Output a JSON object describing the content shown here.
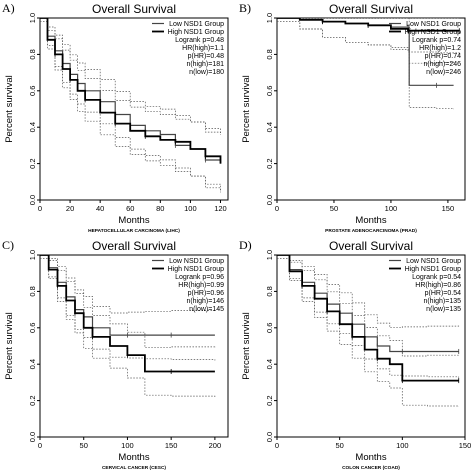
{
  "chart_data": [
    {
      "panel_letter": "A)",
      "type": "line",
      "title": "Overall Survival",
      "xlabel": "Months",
      "ylabel": "Percent survival",
      "caption": "HEPATOCELLULAR CARCINOMA (LIHC)",
      "xlim": [
        0,
        125
      ],
      "ylim": [
        0,
        1.0
      ],
      "xticks": [
        0,
        20,
        40,
        60,
        80,
        100,
        120
      ],
      "yticks": [
        "0.0",
        "0.2",
        "0.4",
        "0.6",
        "0.8",
        "1.0"
      ],
      "legend": [
        "Low NSD1 Group",
        "High NSD1 Group"
      ],
      "stats": [
        "Logrank p=0.48",
        "HR(high)=1.1",
        "p(HR)=0.48",
        "n(high)=181",
        "n(low)=180"
      ],
      "series": [
        {
          "name": "Low NSD1 Group",
          "x": [
            0,
            5,
            10,
            15,
            20,
            25,
            30,
            40,
            50,
            60,
            70,
            80,
            90,
            100,
            110,
            120
          ],
          "y": [
            1.0,
            0.9,
            0.82,
            0.75,
            0.69,
            0.64,
            0.6,
            0.54,
            0.47,
            0.41,
            0.38,
            0.36,
            0.3,
            0.28,
            0.22,
            0.2
          ]
        },
        {
          "name": "High NSD1 Group",
          "x": [
            0,
            5,
            10,
            15,
            20,
            25,
            30,
            40,
            50,
            60,
            70,
            80,
            90,
            100,
            110,
            120
          ],
          "y": [
            1.0,
            0.88,
            0.8,
            0.72,
            0.66,
            0.6,
            0.55,
            0.48,
            0.42,
            0.38,
            0.35,
            0.33,
            0.32,
            0.28,
            0.24,
            0.2
          ]
        }
      ]
    },
    {
      "panel_letter": "B)",
      "type": "line",
      "title": "Overall Survival",
      "xlabel": "Months",
      "ylabel": "Percent survival",
      "caption": "PROSTATE ADENOCARCINOMA (PRAD)",
      "xlim": [
        0,
        165
      ],
      "ylim": [
        0,
        1.0
      ],
      "xticks": [
        0,
        50,
        100,
        150
      ],
      "yticks": [
        "0.0",
        "0.2",
        "0.4",
        "0.6",
        "0.8",
        "1.0"
      ],
      "legend": [
        "Low NSD1 Group",
        "High NSD1 Group"
      ],
      "stats": [
        "Logrank p=0.74",
        "HR(high)=1.2",
        "p(HR)=0.74",
        "n(high)=246",
        "n(low)=246"
      ],
      "series": [
        {
          "name": "Low NSD1 Group",
          "x": [
            0,
            20,
            40,
            60,
            80,
            100,
            115,
            116,
            140,
            155
          ],
          "y": [
            1.0,
            0.99,
            0.98,
            0.97,
            0.96,
            0.95,
            0.95,
            0.63,
            0.63,
            0.63
          ]
        },
        {
          "name": "High NSD1 Group",
          "x": [
            0,
            20,
            40,
            60,
            80,
            100,
            115,
            140,
            160
          ],
          "y": [
            1.0,
            0.99,
            0.98,
            0.97,
            0.96,
            0.94,
            0.93,
            0.93,
            0.93
          ]
        }
      ]
    },
    {
      "panel_letter": "C)",
      "type": "line",
      "title": "Overall Survival",
      "xlabel": "Months",
      "ylabel": "Percent survival",
      "caption": "CERVICAL CANCER (CESC)",
      "xlim": [
        0,
        215
      ],
      "ylim": [
        0,
        1.0
      ],
      "xticks": [
        0,
        50,
        100,
        150,
        200
      ],
      "yticks": [
        "0.0",
        "0.2",
        "0.4",
        "0.6",
        "0.8",
        "1.0"
      ],
      "legend": [
        "Low NSD1 Group",
        "High NSD1 Group"
      ],
      "stats": [
        "Logrank p=0.96",
        "HR(high)=0.99",
        "p(HR)=0.96",
        "n(high)=146",
        "n(low)=145"
      ],
      "series": [
        {
          "name": "Low NSD1 Group",
          "x": [
            0,
            10,
            20,
            30,
            40,
            50,
            60,
            80,
            100,
            120,
            150,
            200
          ],
          "y": [
            1.0,
            0.93,
            0.85,
            0.77,
            0.7,
            0.66,
            0.6,
            0.56,
            0.56,
            0.56,
            0.56,
            0.56
          ]
        },
        {
          "name": "High NSD1 Group",
          "x": [
            0,
            10,
            20,
            30,
            40,
            50,
            60,
            80,
            100,
            120,
            150,
            200
          ],
          "y": [
            1.0,
            0.92,
            0.83,
            0.75,
            0.68,
            0.6,
            0.55,
            0.5,
            0.45,
            0.36,
            0.36,
            0.36
          ]
        }
      ]
    },
    {
      "panel_letter": "D)",
      "type": "line",
      "title": "Overall Survival",
      "xlabel": "Months",
      "ylabel": "Percent survival",
      "caption": "COLON CANCER (COAD)",
      "xlim": [
        0,
        150
      ],
      "ylim": [
        0,
        1.0
      ],
      "xticks": [
        0,
        50,
        100,
        150
      ],
      "yticks": [
        "0.0",
        "0.2",
        "0.4",
        "0.6",
        "0.8",
        "1.0"
      ],
      "legend": [
        "Low NSD1 Group",
        "High NSD1 Group"
      ],
      "stats": [
        "Logrank p=0.54",
        "HR(high)=0.86",
        "p(HR)=0.54",
        "n(high)=135",
        "n(low)=135"
      ],
      "series": [
        {
          "name": "Low NSD1 Group",
          "x": [
            0,
            10,
            20,
            30,
            40,
            50,
            60,
            70,
            80,
            90,
            100,
            120,
            145
          ],
          "y": [
            1.0,
            0.92,
            0.85,
            0.79,
            0.73,
            0.68,
            0.62,
            0.55,
            0.5,
            0.47,
            0.47,
            0.47,
            0.47
          ]
        },
        {
          "name": "High NSD1 Group",
          "x": [
            0,
            10,
            20,
            30,
            40,
            50,
            60,
            70,
            80,
            90,
            100,
            120,
            145
          ],
          "y": [
            1.0,
            0.91,
            0.83,
            0.76,
            0.69,
            0.62,
            0.55,
            0.48,
            0.43,
            0.4,
            0.31,
            0.31,
            0.31
          ]
        }
      ]
    }
  ]
}
